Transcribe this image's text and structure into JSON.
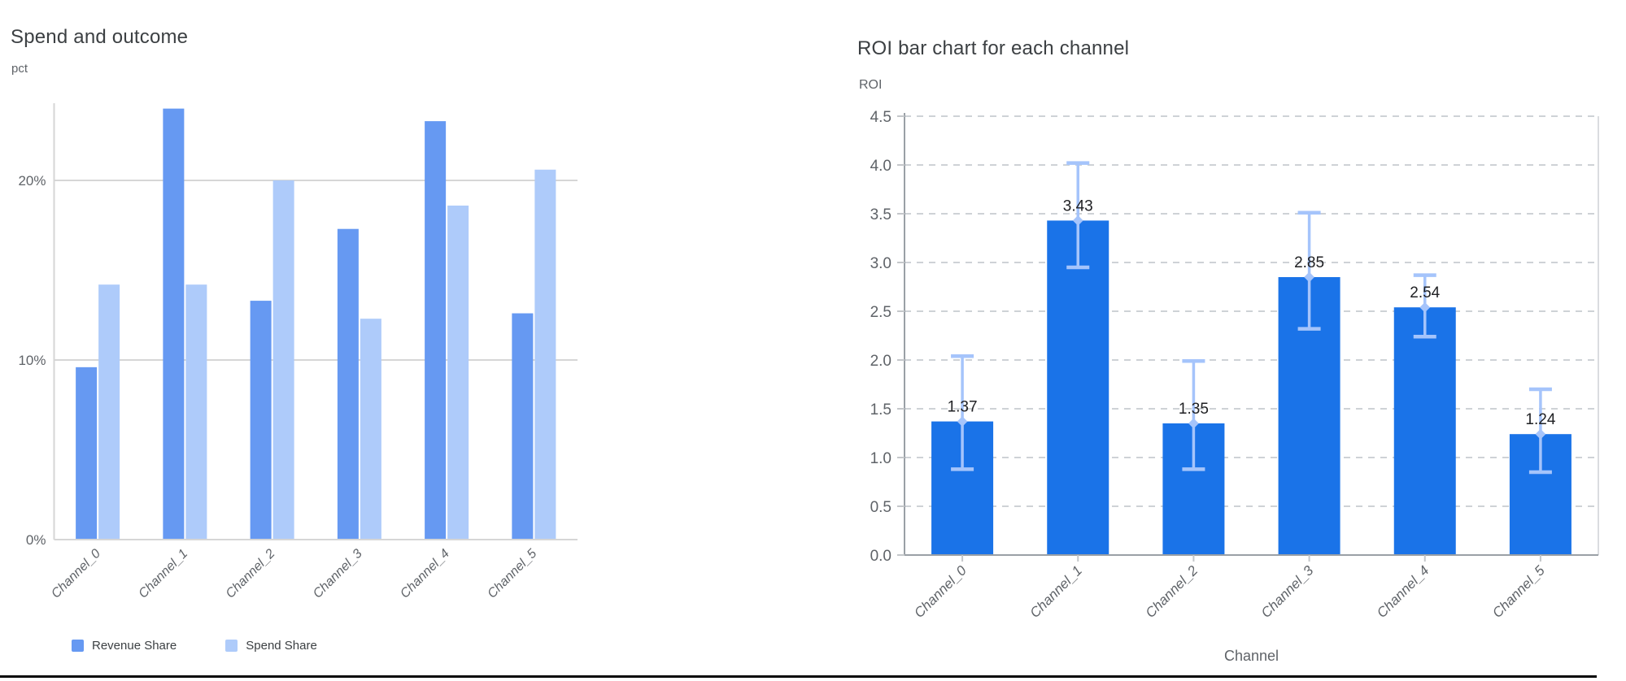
{
  "page": {
    "background": "#ffffff",
    "divider_color": "#060606"
  },
  "chart_data": [
    {
      "id": "spend-and-outcome",
      "type": "bar",
      "title": "Spend and outcome",
      "ylabel": "pct",
      "xlabel": "",
      "unit": "percent",
      "categories": [
        "Channel_0",
        "Channel_1",
        "Channel_2",
        "Channel_3",
        "Channel_4",
        "Channel_5"
      ],
      "series": [
        {
          "name": "Revenue Share",
          "color": "#6699f2",
          "values": [
            9.6,
            24.0,
            13.3,
            17.3,
            23.3,
            12.6
          ]
        },
        {
          "name": "Spend Share",
          "color": "#aecbfa",
          "values": [
            14.2,
            14.2,
            20.0,
            12.3,
            18.6,
            20.6
          ]
        }
      ],
      "ylim": [
        0,
        24.3
      ],
      "y_ticks": [
        {
          "value": 0,
          "label": "0%"
        },
        {
          "value": 10,
          "label": "10%"
        },
        {
          "value": 20,
          "label": "20%"
        }
      ],
      "grid": "solid",
      "grid_color": "#d6d6d6",
      "legend_position": "bottom"
    },
    {
      "id": "roi-by-channel",
      "type": "bar",
      "title": "ROI bar chart for each channel",
      "ylabel": "ROI",
      "xlabel": "Channel",
      "categories": [
        "Channel_0",
        "Channel_1",
        "Channel_2",
        "Channel_3",
        "Channel_4",
        "Channel_5"
      ],
      "values": [
        1.37,
        3.43,
        1.35,
        2.85,
        2.54,
        1.24
      ],
      "data_labels": [
        "1.37",
        "3.43",
        "1.35",
        "2.85",
        "2.54",
        "1.24"
      ],
      "error_low": [
        0.88,
        2.95,
        0.88,
        2.32,
        2.24,
        0.85
      ],
      "error_high": [
        2.04,
        4.02,
        1.99,
        3.51,
        2.87,
        1.7
      ],
      "bar_color": "#1a73e8",
      "error_bar_color": "#a5c4fb",
      "ylim": [
        0,
        4.5
      ],
      "y_tick_step": 0.5,
      "y_tick_labels": [
        "0.0",
        "0.5",
        "1.0",
        "1.5",
        "2.0",
        "2.5",
        "3.0",
        "3.5",
        "4.0",
        "4.5"
      ],
      "grid": "dashed",
      "grid_color": "#ced2d6",
      "axis_color": "#9aa0a6",
      "legend_position": "none"
    }
  ]
}
